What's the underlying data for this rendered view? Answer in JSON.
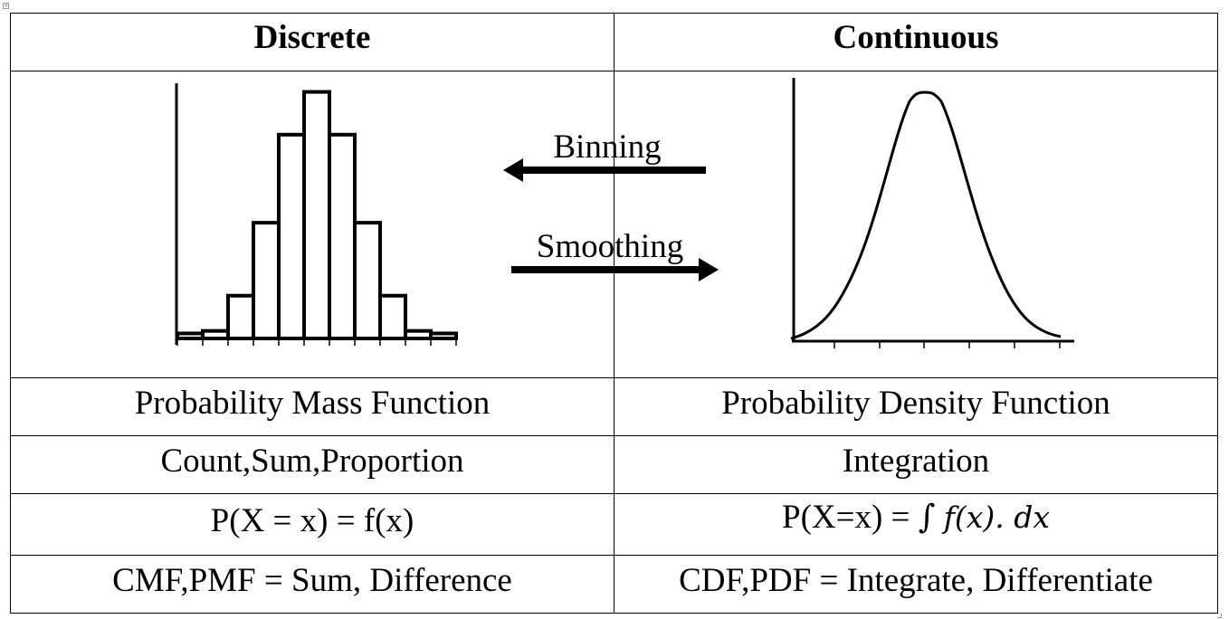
{
  "table": {
    "headers": [
      "Discrete",
      "Continuous"
    ],
    "rows": [
      [
        "Probability Mass Function",
        "Probability Density Function"
      ],
      [
        "Count,Sum,Proportion",
        "Integration"
      ],
      [
        "P(X = x) = f(x)",
        "P(X=x) = "
      ],
      [
        "CMF,PMF = Sum, Difference",
        "CDF,PDF = Integrate, Differentiate"
      ]
    ],
    "pdf_formula": {
      "prefix": "P(X=x) = ",
      "integral": "∫",
      "expression": "f(x). dx"
    }
  },
  "arrows": {
    "binning_label": "Binning",
    "smoothing_label": "Smoothing"
  },
  "histogram": {
    "bar_heights": [
      0.02,
      0.03,
      0.17,
      0.46,
      0.81,
      0.98,
      0.81,
      0.46,
      0.17,
      0.03,
      0.02
    ]
  },
  "colors": {
    "line": "#000000",
    "background": "#ffffff"
  },
  "icons": [
    "table-anchor-icon"
  ]
}
